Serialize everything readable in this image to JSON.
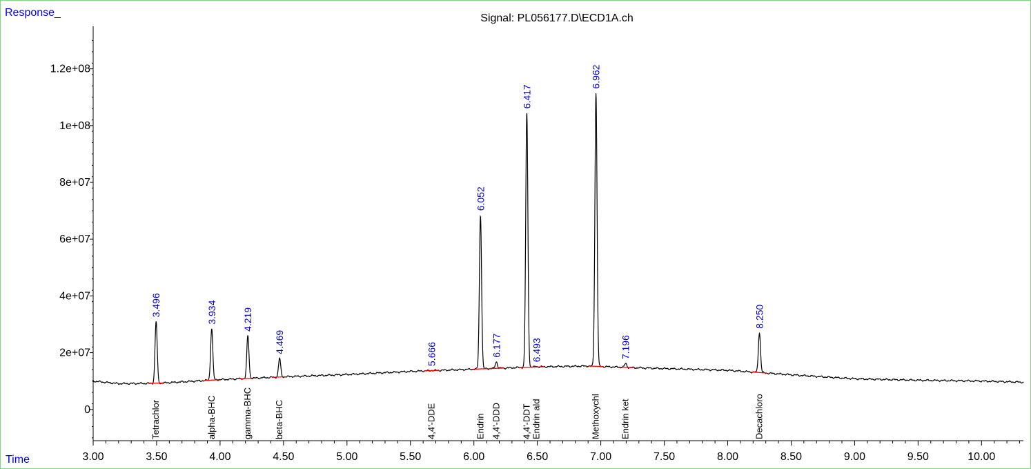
{
  "chart_data": {
    "type": "line",
    "title": "Signal: PL056177.D\\ECD1A.ch",
    "ylabel": "Response_",
    "xlabel": "Time",
    "xlim": [
      3.0,
      10.33
    ],
    "ylim": [
      -11000000,
      135000000
    ],
    "x_ticks": [
      "3.00",
      "3.50",
      "4.00",
      "4.50",
      "5.00",
      "5.50",
      "6.00",
      "6.50",
      "7.00",
      "7.50",
      "8.00",
      "8.50",
      "9.00",
      "9.50",
      "10.00"
    ],
    "y_ticks": [
      {
        "label": "0",
        "value": 0
      },
      {
        "label": "2e+07",
        "value": 20000000
      },
      {
        "label": "4e+07",
        "value": 40000000
      },
      {
        "label": "6e+07",
        "value": 60000000
      },
      {
        "label": "8e+07",
        "value": 80000000
      },
      {
        "label": "1e+08",
        "value": 100000000
      },
      {
        "label": "1.2e+08",
        "value": 120000000
      }
    ],
    "baseline": [
      [
        3.0,
        10000000
      ],
      [
        3.2,
        9100000
      ],
      [
        3.5,
        9200000
      ],
      [
        4.0,
        10500000
      ],
      [
        4.5,
        11500000
      ],
      [
        5.0,
        12300000
      ],
      [
        5.5,
        13400000
      ],
      [
        6.0,
        14200000
      ],
      [
        6.5,
        15000000
      ],
      [
        6.9,
        15300000
      ],
      [
        7.2,
        14800000
      ],
      [
        7.5,
        14400000
      ],
      [
        8.0,
        13800000
      ],
      [
        8.5,
        12200000
      ],
      [
        9.0,
        10800000
      ],
      [
        9.5,
        10300000
      ],
      [
        10.0,
        10000000
      ],
      [
        10.33,
        9600000
      ]
    ],
    "peaks": [
      {
        "rt": 3.496,
        "rt_label": "3.496",
        "height": 31000000,
        "compound": "Tetrachlor"
      },
      {
        "rt": 3.934,
        "rt_label": "3.934",
        "height": 28500000,
        "compound": "alpha-BHC"
      },
      {
        "rt": 4.219,
        "rt_label": "4.219",
        "height": 26000000,
        "compound": "gamma-BHC"
      },
      {
        "rt": 4.469,
        "rt_label": "4.469",
        "height": 18000000,
        "compound": "beta-BHC"
      },
      {
        "rt": 5.666,
        "rt_label": "5.666",
        "height": 13800000,
        "compound": "4,4'-DDE"
      },
      {
        "rt": 6.052,
        "rt_label": "6.052",
        "height": 68500000,
        "compound": "Endrin"
      },
      {
        "rt": 6.177,
        "rt_label": "6.177",
        "height": 16800000,
        "compound": "4,4'-DDD"
      },
      {
        "rt": 6.417,
        "rt_label": "6.417",
        "height": 104500000,
        "compound": "4,4'-DDT"
      },
      {
        "rt": 6.493,
        "rt_label": "6.493",
        "height": 15200000,
        "compound": "Endrin ald"
      },
      {
        "rt": 6.962,
        "rt_label": "6.962",
        "height": 111500000,
        "compound": "Methoxychl"
      },
      {
        "rt": 7.196,
        "rt_label": "7.196",
        "height": 16200000,
        "compound": "Endrin ket"
      },
      {
        "rt": 8.25,
        "rt_label": "8.250",
        "height": 27000000,
        "compound": "Decachloro"
      }
    ],
    "colors": {
      "trace": "#000000",
      "baseline_marks": "#ff0000",
      "rt_labels": "#0000cc",
      "axis_labels": "#0000ff",
      "frame": "#7fd67f"
    }
  }
}
